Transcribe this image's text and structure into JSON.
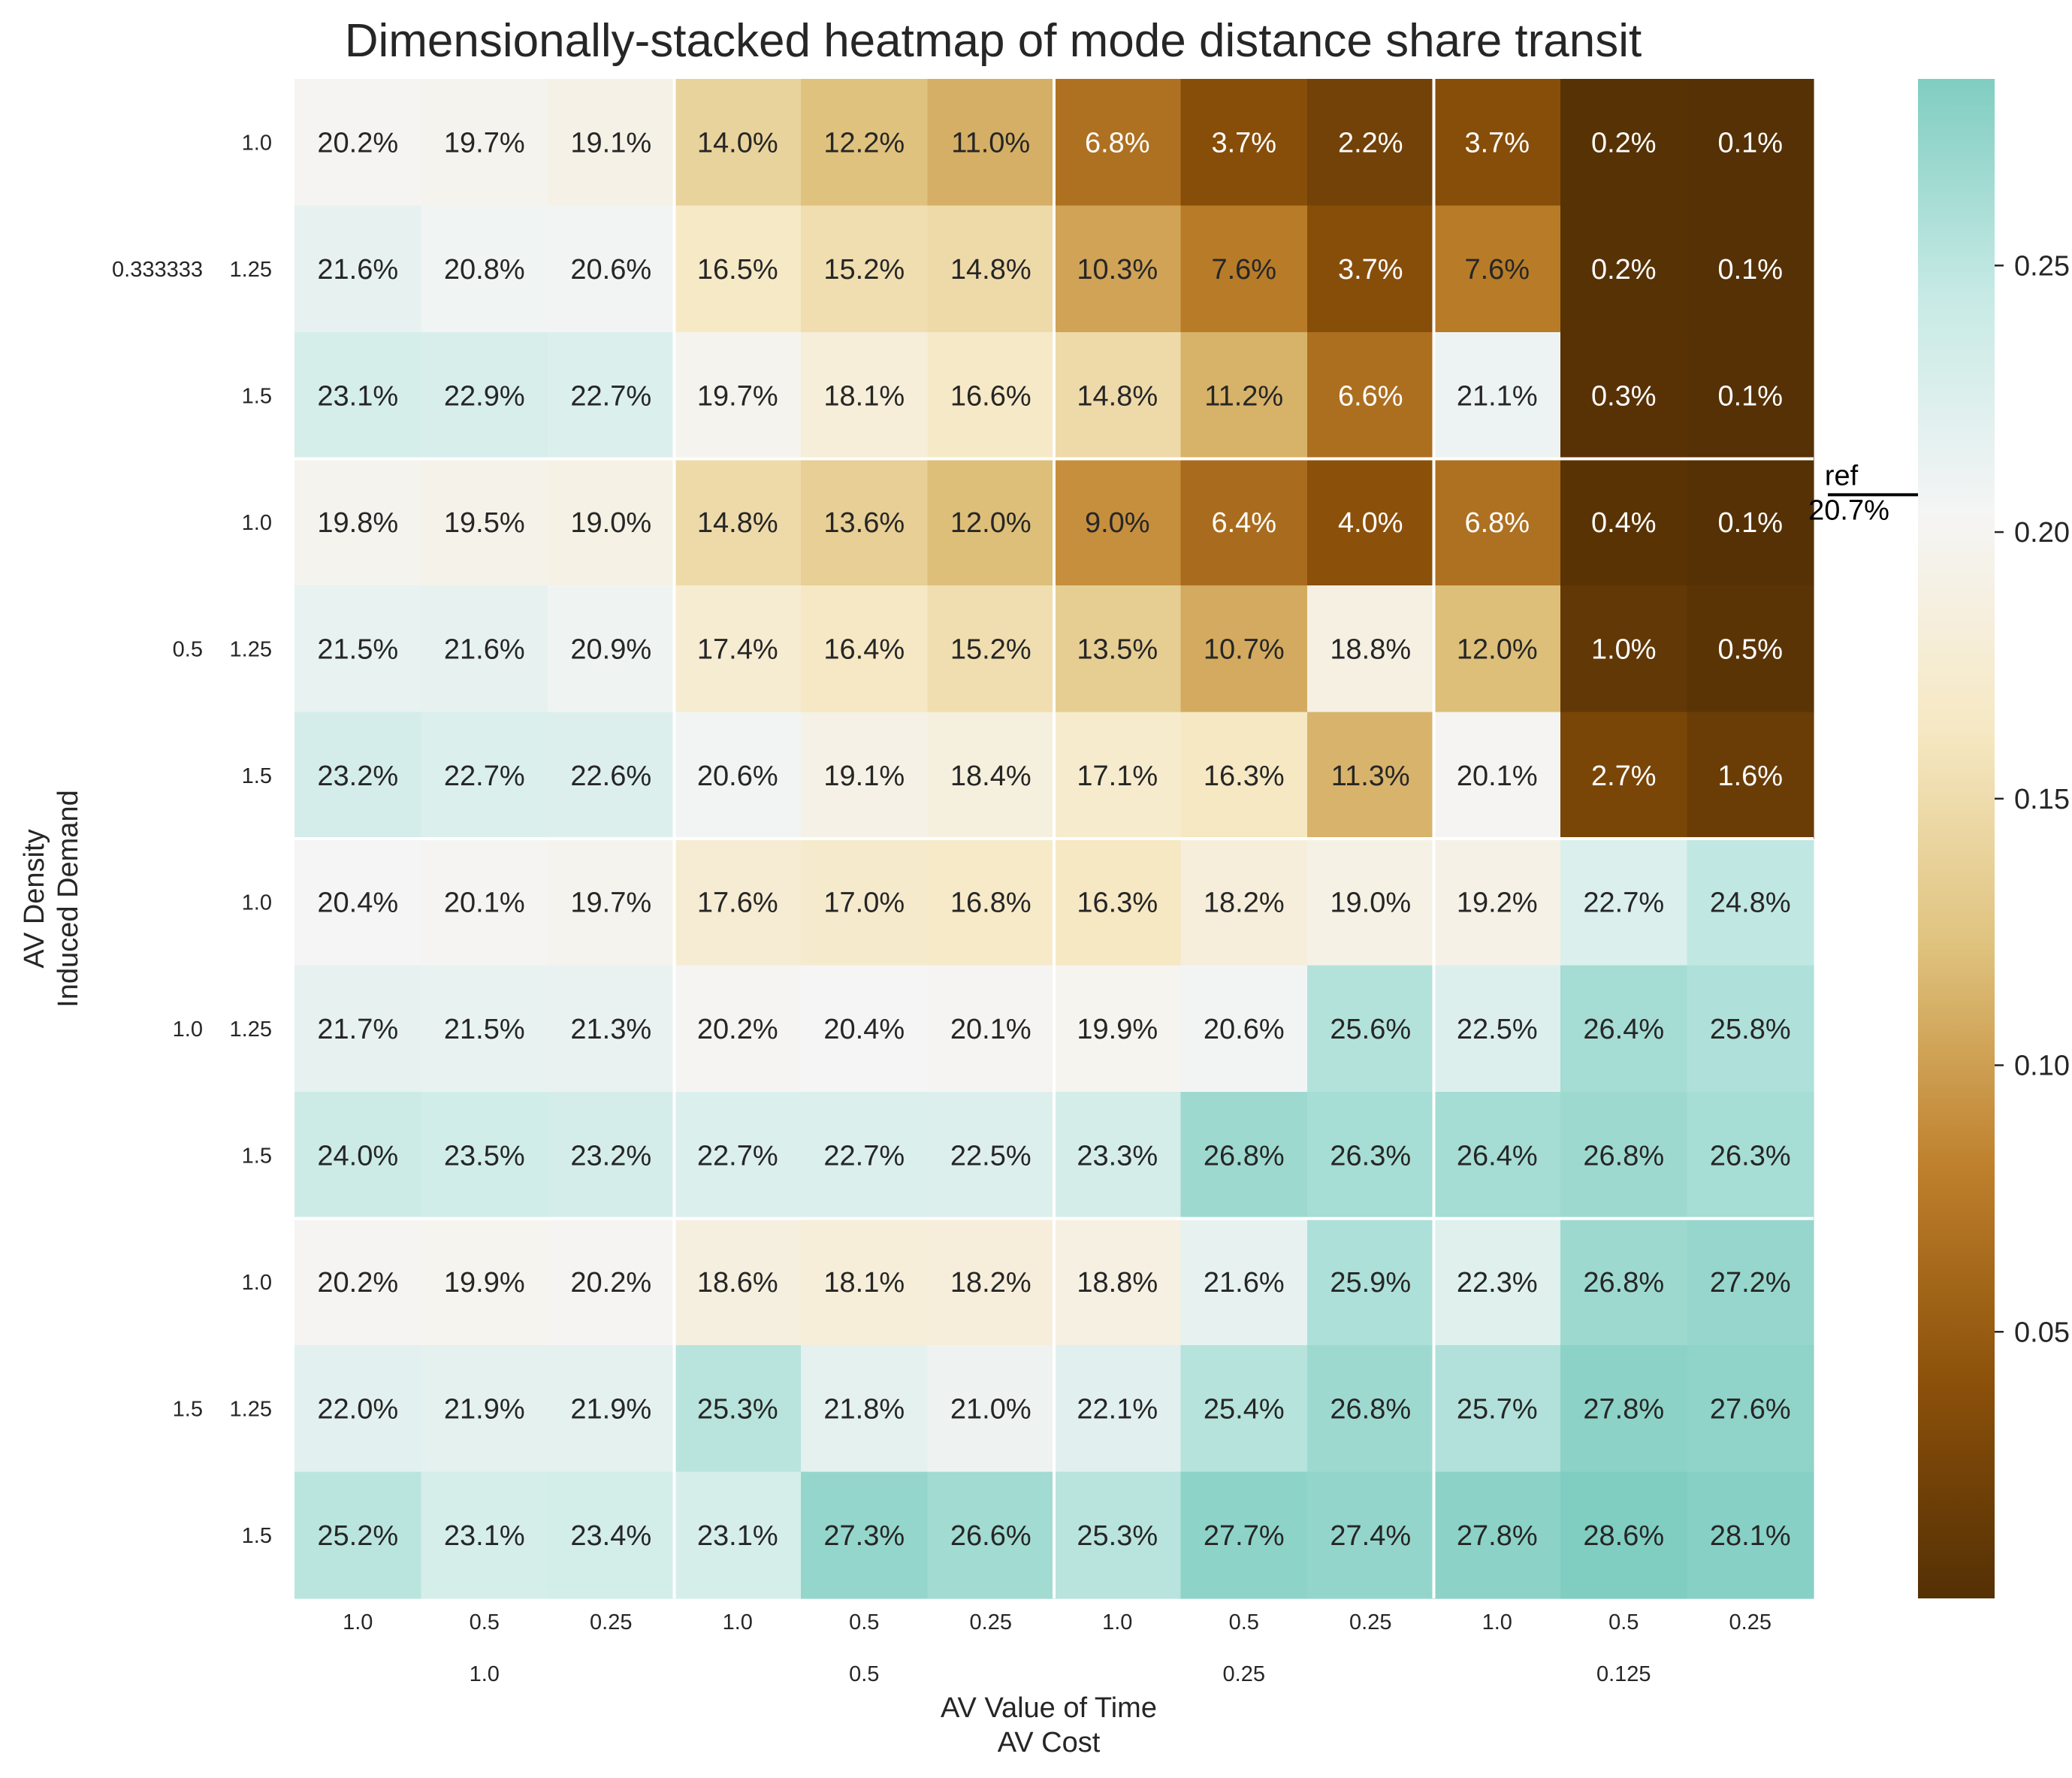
{
  "chart_data": {
    "type": "heatmap",
    "title": "Dimensionally-stacked heatmap of mode distance share transit",
    "xlabel": [
      "AV Value of Time",
      "AV Cost"
    ],
    "ylabel": [
      "AV Density",
      "Induced Demand"
    ],
    "x_outer_labels": [
      "1.0",
      "0.5",
      "0.25",
      "0.125"
    ],
    "x_inner_labels": [
      "1.0",
      "0.5",
      "0.25",
      "1.0",
      "0.5",
      "0.25",
      "1.0",
      "0.5",
      "0.25",
      "1.0",
      "0.5",
      "0.25"
    ],
    "y_outer_labels": [
      "0.333333",
      "0.5",
      "1.0",
      "1.5"
    ],
    "y_inner_labels": [
      "1.0",
      "1.25",
      "1.5",
      "1.0",
      "1.25",
      "1.5",
      "1.0",
      "1.25",
      "1.5",
      "1.0",
      "1.25",
      "1.5"
    ],
    "values": [
      [
        20.2,
        19.7,
        19.1,
        14.0,
        12.2,
        11.0,
        6.8,
        3.7,
        2.2,
        3.7,
        0.2,
        0.1
      ],
      [
        21.6,
        20.8,
        20.6,
        16.5,
        15.2,
        14.8,
        10.3,
        7.6,
        3.7,
        7.6,
        0.2,
        0.1
      ],
      [
        23.1,
        22.9,
        22.7,
        19.7,
        18.1,
        16.6,
        14.8,
        11.2,
        6.6,
        21.1,
        0.3,
        0.1
      ],
      [
        19.8,
        19.5,
        19.0,
        14.8,
        13.6,
        12.0,
        9.0,
        6.4,
        4.0,
        6.8,
        0.4,
        0.1
      ],
      [
        21.5,
        21.6,
        20.9,
        17.4,
        16.4,
        15.2,
        13.5,
        10.7,
        18.8,
        12.0,
        1.0,
        0.5
      ],
      [
        23.2,
        22.7,
        22.6,
        20.6,
        19.1,
        18.4,
        17.1,
        16.3,
        11.3,
        20.1,
        2.7,
        1.6
      ],
      [
        20.4,
        20.1,
        19.7,
        17.6,
        17.0,
        16.8,
        16.3,
        18.2,
        19.0,
        19.2,
        22.7,
        24.8
      ],
      [
        21.7,
        21.5,
        21.3,
        20.2,
        20.4,
        20.1,
        19.9,
        20.6,
        25.6,
        22.5,
        26.4,
        25.8
      ],
      [
        24.0,
        23.5,
        23.2,
        22.7,
        22.7,
        22.5,
        23.3,
        26.8,
        26.3,
        26.4,
        26.8,
        26.3
      ],
      [
        20.2,
        19.9,
        20.2,
        18.6,
        18.1,
        18.2,
        18.8,
        21.6,
        25.9,
        22.3,
        26.8,
        27.2
      ],
      [
        22.0,
        21.9,
        21.9,
        25.3,
        21.8,
        21.0,
        22.1,
        25.4,
        26.8,
        25.7,
        27.8,
        27.6
      ],
      [
        25.2,
        23.1,
        23.4,
        23.1,
        27.3,
        26.6,
        25.3,
        27.7,
        27.4,
        27.8,
        28.6,
        28.1
      ]
    ],
    "colorbar": {
      "range": [
        0.0,
        0.285
      ],
      "ticks": [
        "0.05",
        "0.10",
        "0.15",
        "0.20",
        "0.25"
      ],
      "tick_values": [
        0.05,
        0.1,
        0.15,
        0.2,
        0.25
      ],
      "colormap": "BrBG",
      "colors": [
        "#543005",
        "#8c510a",
        "#bf812d",
        "#dfc27d",
        "#f6e8c3",
        "#f5f5f5",
        "#c7eae5",
        "#80cdc1"
      ],
      "ref_label": "ref",
      "ref_value_label": "20.7%",
      "ref_value": 0.207
    },
    "grid": false
  }
}
